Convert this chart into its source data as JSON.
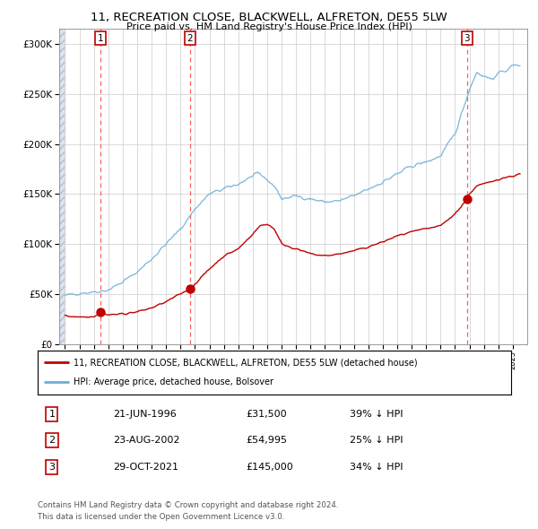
{
  "title": "11, RECREATION CLOSE, BLACKWELL, ALFRETON, DE55 5LW",
  "subtitle": "Price paid vs. HM Land Registry's House Price Index (HPI)",
  "sales": [
    {
      "date_num": 1996.47,
      "price": 31500,
      "label": "1",
      "date_str": "21-JUN-1996",
      "pct": "39% ↓ HPI"
    },
    {
      "date_num": 2002.64,
      "price": 54995,
      "label": "2",
      "date_str": "23-AUG-2002",
      "pct": "25% ↓ HPI"
    },
    {
      "date_num": 2021.83,
      "price": 145000,
      "label": "3",
      "date_str": "29-OCT-2021",
      "pct": "34% ↓ HPI"
    }
  ],
  "hpi_color": "#6baed6",
  "sale_color": "#c00000",
  "vline_color": "#ff4444",
  "ylabel_prefix": "£",
  "yticks": [
    0,
    50000,
    100000,
    150000,
    200000,
    250000,
    300000
  ],
  "ytick_labels": [
    "£0",
    "£50K",
    "£100K",
    "£150K",
    "£200K",
    "£250K",
    "£300K"
  ],
  "xmin": 1993.6,
  "xmax": 2026.0,
  "ymin": 0,
  "ymax": 315000,
  "legend_label_sale": "11, RECREATION CLOSE, BLACKWELL, ALFRETON, DE55 5LW (detached house)",
  "legend_label_hpi": "HPI: Average price, detached house, Bolsover",
  "footer": "Contains HM Land Registry data © Crown copyright and database right 2024.\nThis data is licensed under the Open Government Licence v3.0.",
  "hpi_knots": [
    [
      1994.0,
      48000
    ],
    [
      1995.0,
      51000
    ],
    [
      1996.0,
      52000
    ],
    [
      1997.0,
      54000
    ],
    [
      1998.0,
      62000
    ],
    [
      1999.0,
      72000
    ],
    [
      2000.0,
      85000
    ],
    [
      2001.0,
      100000
    ],
    [
      2002.0,
      115000
    ],
    [
      2003.0,
      135000
    ],
    [
      2004.0,
      150000
    ],
    [
      2005.0,
      155000
    ],
    [
      2006.0,
      160000
    ],
    [
      2007.0,
      168000
    ],
    [
      2007.5,
      170000
    ],
    [
      2008.5,
      158000
    ],
    [
      2009.0,
      145000
    ],
    [
      2010.0,
      148000
    ],
    [
      2011.0,
      145000
    ],
    [
      2012.0,
      142000
    ],
    [
      2013.0,
      143000
    ],
    [
      2014.0,
      148000
    ],
    [
      2015.0,
      155000
    ],
    [
      2016.0,
      162000
    ],
    [
      2017.0,
      170000
    ],
    [
      2018.0,
      178000
    ],
    [
      2019.0,
      182000
    ],
    [
      2020.0,
      188000
    ],
    [
      2021.0,
      210000
    ],
    [
      2022.0,
      255000
    ],
    [
      2022.5,
      272000
    ],
    [
      2023.0,
      268000
    ],
    [
      2023.5,
      265000
    ],
    [
      2024.0,
      270000
    ],
    [
      2025.0,
      278000
    ],
    [
      2025.5,
      280000
    ]
  ],
  "prop_knots": [
    [
      1994.0,
      28000
    ],
    [
      1995.0,
      27000
    ],
    [
      1996.0,
      27500
    ],
    [
      1996.47,
      31500
    ],
    [
      1997.0,
      29000
    ],
    [
      1998.0,
      30000
    ],
    [
      1999.0,
      32000
    ],
    [
      2000.0,
      36000
    ],
    [
      2001.0,
      42000
    ],
    [
      2002.0,
      50000
    ],
    [
      2002.64,
      54995
    ],
    [
      2003.0,
      60000
    ],
    [
      2004.0,
      75000
    ],
    [
      2005.0,
      88000
    ],
    [
      2006.0,
      95000
    ],
    [
      2007.0,
      110000
    ],
    [
      2007.5,
      118000
    ],
    [
      2008.0,
      120000
    ],
    [
      2008.5,
      115000
    ],
    [
      2009.0,
      100000
    ],
    [
      2010.0,
      95000
    ],
    [
      2011.0,
      90000
    ],
    [
      2012.0,
      88000
    ],
    [
      2013.0,
      90000
    ],
    [
      2014.0,
      93000
    ],
    [
      2015.0,
      97000
    ],
    [
      2016.0,
      102000
    ],
    [
      2017.0,
      108000
    ],
    [
      2018.0,
      112000
    ],
    [
      2019.0,
      115000
    ],
    [
      2020.0,
      118000
    ],
    [
      2021.0,
      130000
    ],
    [
      2021.83,
      145000
    ],
    [
      2022.0,
      150000
    ],
    [
      2022.5,
      158000
    ],
    [
      2023.0,
      160000
    ],
    [
      2023.5,
      162000
    ],
    [
      2024.0,
      165000
    ],
    [
      2025.0,
      168000
    ],
    [
      2025.5,
      170000
    ]
  ]
}
